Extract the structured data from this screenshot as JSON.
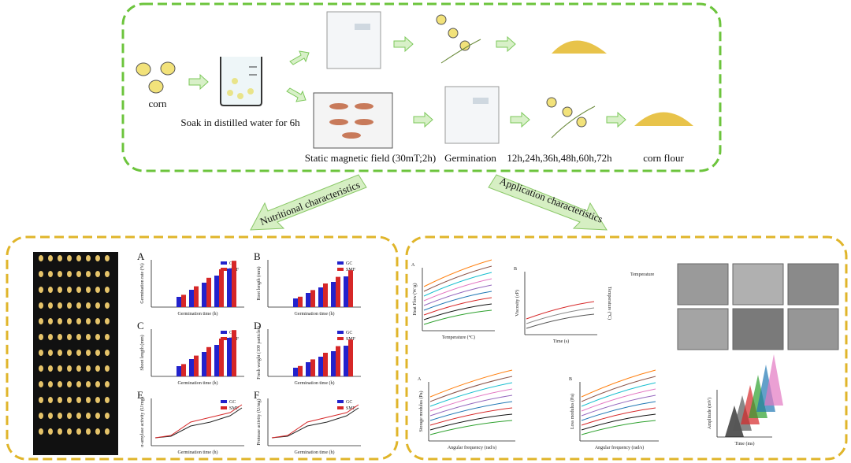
{
  "flow": {
    "corn": "corn",
    "soak": "Soak in distilled water for 6h",
    "smf": "Static magnetic field (30mT;2h)",
    "germination": "Germination",
    "times": "12h,24h,36h,48h,60h,72h",
    "flour": "corn flour"
  },
  "arrows": {
    "left": "Nutritional characteristics",
    "right": "Application characteristics"
  },
  "nutritional": {
    "x_label": "Germination time (h)",
    "legend": [
      "GC",
      "SMF"
    ],
    "panels": [
      {
        "letter": "A",
        "y_label": "Germination rate (%)"
      },
      {
        "letter": "B",
        "y_label": "Root length (mm)"
      },
      {
        "letter": "C",
        "y_label": "Shoot length (mm)"
      },
      {
        "letter": "D",
        "y_label": "Fresh weight (100 particles)"
      },
      {
        "letter": "E",
        "y_label": "α-amylase activity (U/mg)"
      },
      {
        "letter": "F",
        "y_label": "Protease activity (U/mg)"
      }
    ]
  },
  "application": {
    "heat": {
      "letter": "A",
      "y_label": "Heat Flow (W/g)",
      "x_label": "Temperature (°C)"
    },
    "viscosity": {
      "letter": "B",
      "y_label": "Viscosity (cP)",
      "y2_label": "Temperature (°C)",
      "x_label": "Time (s)",
      "legend": "Temperature"
    },
    "storage": {
      "letter": "A",
      "y_label": "Storage modulus (Pa)",
      "x_label": "Angular frequency (rad/s)"
    },
    "loss": {
      "letter": "B",
      "y_label": "Loss modulus (Pa)",
      "x_label": "Angular frequency (rad/s)"
    },
    "spectra": {
      "y_label": "Amplitude (mV)",
      "x_label": "Time (ms)"
    }
  }
}
